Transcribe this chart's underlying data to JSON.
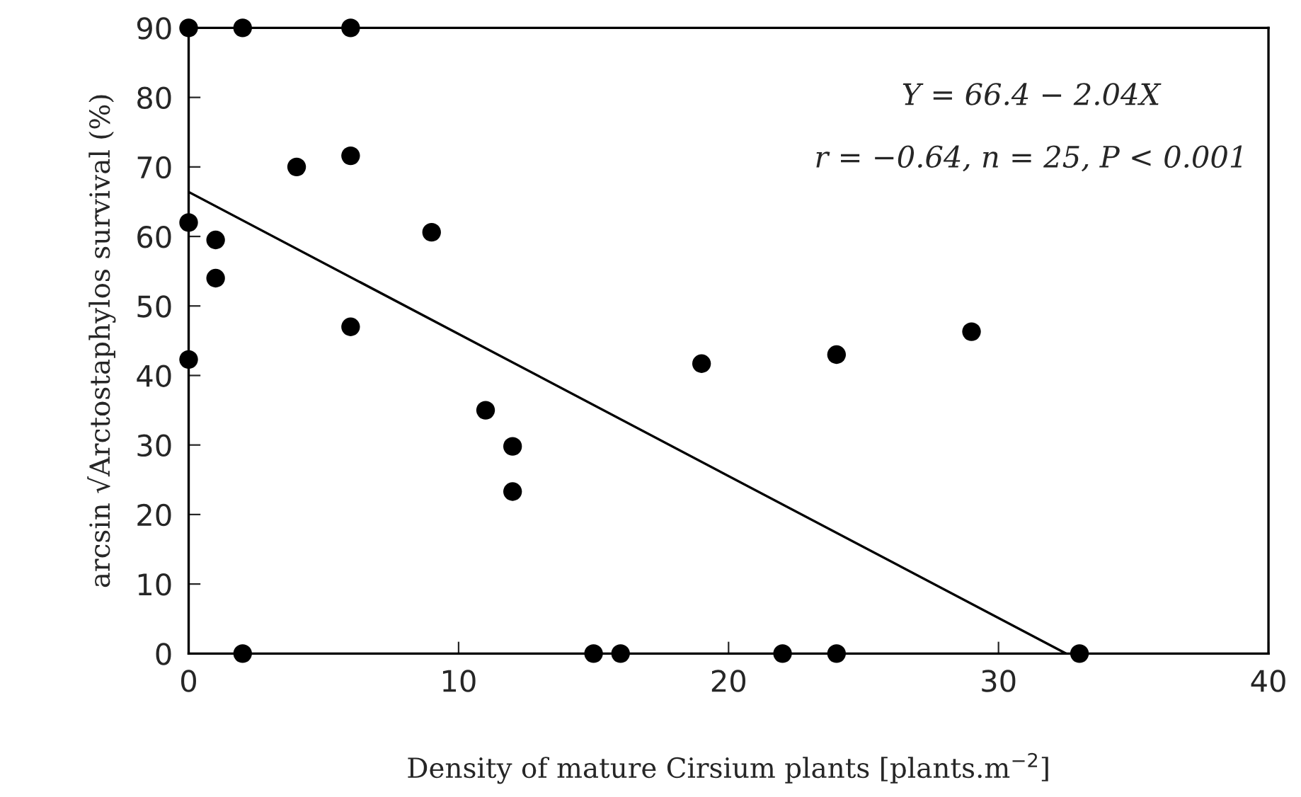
{
  "chart_data": {
    "type": "scatter",
    "xlabel": "Density of mature Cirsium plants [plants.m$^{−2}$]",
    "ylabel": "arcsin √Arctostaphylos survival (%)",
    "xlim": [
      0,
      40
    ],
    "xticks": [
      0,
      10,
      20,
      30,
      40
    ],
    "ylim": [
      0,
      90
    ],
    "yticks": [
      0,
      10,
      20,
      30,
      40,
      50,
      60,
      70,
      80,
      90
    ],
    "grid": false,
    "legend": false,
    "annotations": [
      "Y = 66.4 − 2.04X",
      "r = −0.64, n = 25, P < 0.001"
    ],
    "series": [
      {
        "color": "#000000",
        "marker": "circle",
        "x": [
          0,
          2,
          6,
          4,
          6,
          0,
          1,
          1,
          9,
          6,
          0,
          11,
          12,
          12,
          19,
          24,
          29,
          2,
          15,
          16,
          22,
          24,
          33
        ],
        "values": [
          90,
          90,
          90,
          70,
          71.6,
          62,
          59.5,
          54,
          60.6,
          47,
          42.3,
          35,
          29.8,
          23.3,
          41.7,
          43,
          46.3,
          0,
          0,
          0,
          0,
          0,
          0
        ]
      },
      {
        "type": "line",
        "color": "#000000",
        "marker": "none",
        "line_style": "solid",
        "x": [
          0,
          32.5
        ],
        "values": [
          66.4,
          0
        ]
      }
    ]
  }
}
